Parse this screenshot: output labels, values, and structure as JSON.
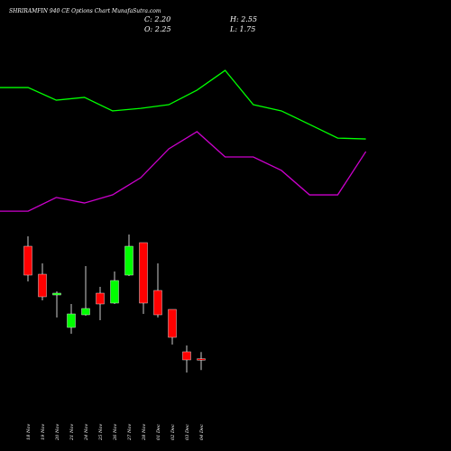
{
  "chart_data": [
    {
      "type": "line",
      "series": [
        {
          "color": "#00ff00",
          "values": [
            8.44,
            8.44,
            7.85,
            7.98,
            7.35,
            7.47,
            7.64,
            8.32,
            9.24,
            7.64,
            7.35,
            6.72,
            6.08,
            6.04
          ]
        },
        {
          "color": "#cc00cc",
          "values": [
            2.67,
            2.67,
            3.31,
            3.05,
            3.43,
            4.23,
            5.58,
            6.38,
            5.2,
            5.2,
            4.57,
            3.43,
            3.43,
            5.45
          ]
        }
      ],
      "ylim": [
        2,
        10
      ]
    },
    {
      "type": "candlestick",
      "title": "SHRIRAMFIN 940 CE Options Chart MunafaSutra.com",
      "ohlc_labels": [
        "C: 2.20",
        "O: 2.25",
        "H: 2.55",
        "L: 1.75"
      ],
      "categories": [
        "18 Nov",
        "19 Nov",
        "20 Nov",
        "21 Nov",
        "24 Nov",
        "25 Nov",
        "26 Nov",
        "27 Nov",
        "28 Nov",
        "01 Dec",
        "02 Dec",
        "03 Dec",
        "04 Dec"
      ],
      "open": [
        7.24,
        6.0,
        5.08,
        3.64,
        4.2,
        5.16,
        4.72,
        5.96,
        7.4,
        5.28,
        4.44,
        2.56,
        2.25
      ],
      "high": [
        7.68,
        6.48,
        5.24,
        4.68,
        6.36,
        5.44,
        6.12,
        7.76,
        7.4,
        6.48,
        4.44,
        2.84,
        2.55
      ],
      "low": [
        5.68,
        4.84,
        4.08,
        3.36,
        4.16,
        3.96,
        4.68,
        5.92,
        4.24,
        4.08,
        2.88,
        1.64,
        1.75
      ],
      "close": [
        5.96,
        5.0,
        5.16,
        4.24,
        4.48,
        4.68,
        5.72,
        7.24,
        4.72,
        4.2,
        3.2,
        2.2,
        2.2
      ],
      "up_color": "#00ff00",
      "down_color": "#ff0000",
      "ylim": [
        1.4,
        8.2
      ]
    }
  ]
}
